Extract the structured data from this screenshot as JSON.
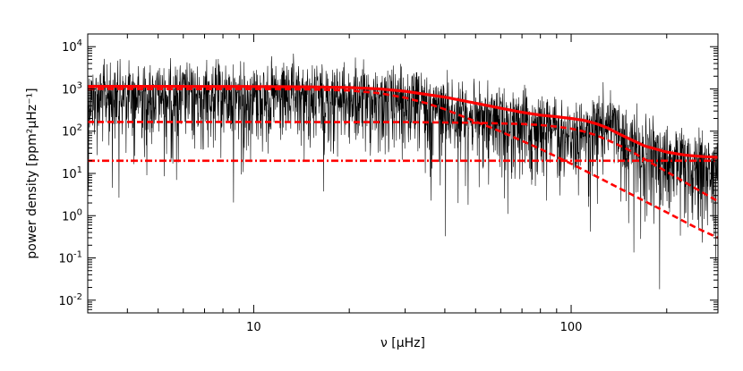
{
  "chart_data": {
    "type": "line",
    "title": "",
    "xlabel": "ν [μHz]",
    "ylabel": "power density [ppm²μHz⁻¹]",
    "xscale": "log",
    "yscale": "log",
    "xlim": [
      3,
      290
    ],
    "ylim": [
      0.005,
      20000
    ],
    "grid": false,
    "legend": "none",
    "x_ticks": [
      {
        "value": 10,
        "label": "10"
      },
      {
        "value": 100,
        "label": "100"
      }
    ],
    "y_ticks": [
      {
        "value": 0.01,
        "base": "10",
        "exp": "-2"
      },
      {
        "value": 0.1,
        "base": "10",
        "exp": "-1"
      },
      {
        "value": 1,
        "base": "10",
        "exp": "0"
      },
      {
        "value": 10,
        "base": "10",
        "exp": "1"
      },
      {
        "value": 100,
        "base": "10",
        "exp": "2"
      },
      {
        "value": 1000,
        "base": "10",
        "exp": "3"
      },
      {
        "value": 10000,
        "base": "10",
        "exp": "4"
      }
    ],
    "series": [
      {
        "style": "noisy-spectrum",
        "color": "#000000",
        "x": [
          3,
          5,
          10,
          20,
          25,
          30,
          40,
          50,
          70,
          90,
          110,
          130,
          140,
          160,
          200,
          250,
          290
        ],
        "y": [
          1100,
          1100,
          1080,
          1000,
          900,
          750,
          500,
          350,
          220,
          160,
          120,
          300,
          150,
          60,
          35,
          25,
          22
        ]
      },
      {
        "style": "solid",
        "color": "#ff0000",
        "x": [
          3,
          5,
          10,
          15,
          20,
          25,
          30,
          40,
          50,
          60,
          70,
          80,
          90,
          100,
          110,
          120,
          130,
          140,
          150,
          170,
          200,
          230,
          260,
          290
        ],
        "y": [
          1150,
          1150,
          1140,
          1120,
          1080,
          1000,
          880,
          640,
          460,
          350,
          280,
          240,
          220,
          200,
          180,
          150,
          120,
          90,
          70,
          45,
          32,
          27,
          25,
          24
        ]
      },
      {
        "style": "dashed",
        "color": "#ff0000",
        "x": [
          3,
          10,
          15,
          20,
          25,
          30,
          35,
          40,
          50,
          60,
          80,
          100,
          120,
          150,
          200,
          250,
          290
        ],
        "y": [
          1000,
          995,
          975,
          920,
          790,
          620,
          460,
          330,
          170,
          98,
          38,
          17,
          8.5,
          3.6,
          1.2,
          0.5,
          0.3
        ]
      },
      {
        "style": "dashed",
        "color": "#ff0000",
        "x": [
          3,
          10,
          30,
          50,
          70,
          80,
          90,
          100,
          110,
          120,
          130,
          150,
          170,
          200,
          230,
          260,
          290
        ],
        "y": [
          165,
          165,
          164,
          158,
          148,
          140,
          128,
          115,
          98,
          80,
          62,
          38,
          22,
          11,
          6,
          3.5,
          2.2
        ]
      },
      {
        "style": "dash-dot",
        "color": "#ff0000",
        "x": [
          3,
          290
        ],
        "y": [
          20,
          20
        ]
      }
    ]
  }
}
